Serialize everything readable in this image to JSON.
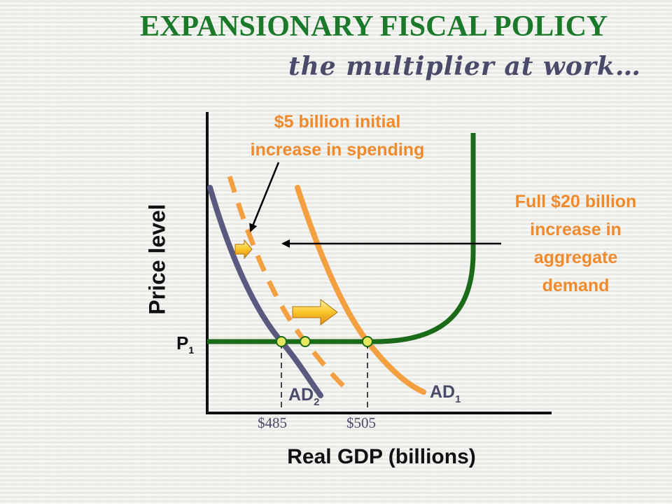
{
  "title": "EXPANSIONARY FISCAL POLICY",
  "subtitle": "the multiplier at work…",
  "axes": {
    "y_label": "Price level",
    "x_label": "Real GDP (billions)",
    "price_marker": {
      "main": "P",
      "sub": "1"
    },
    "x_ticks": [
      "$485",
      "$505"
    ]
  },
  "curves": {
    "ad2": {
      "main": "AD",
      "sub": "2"
    },
    "ad1": {
      "main": "AD",
      "sub": "1"
    }
  },
  "annotations": {
    "initial_spending": [
      "$5 billion initial",
      "increase in spending"
    ],
    "full_increase": [
      "Full $20 billion",
      "increase in",
      "aggregate",
      "demand"
    ]
  },
  "colors": {
    "title": "#1a7a2a",
    "supply_curve": "#1a6a1a",
    "ad_original": "#5a5a80",
    "ad_shifted": "#f5a040",
    "annotation_text": "#f08a2c",
    "marker_fill": "#e8e860",
    "shift_arrow": "#f5c020"
  }
}
